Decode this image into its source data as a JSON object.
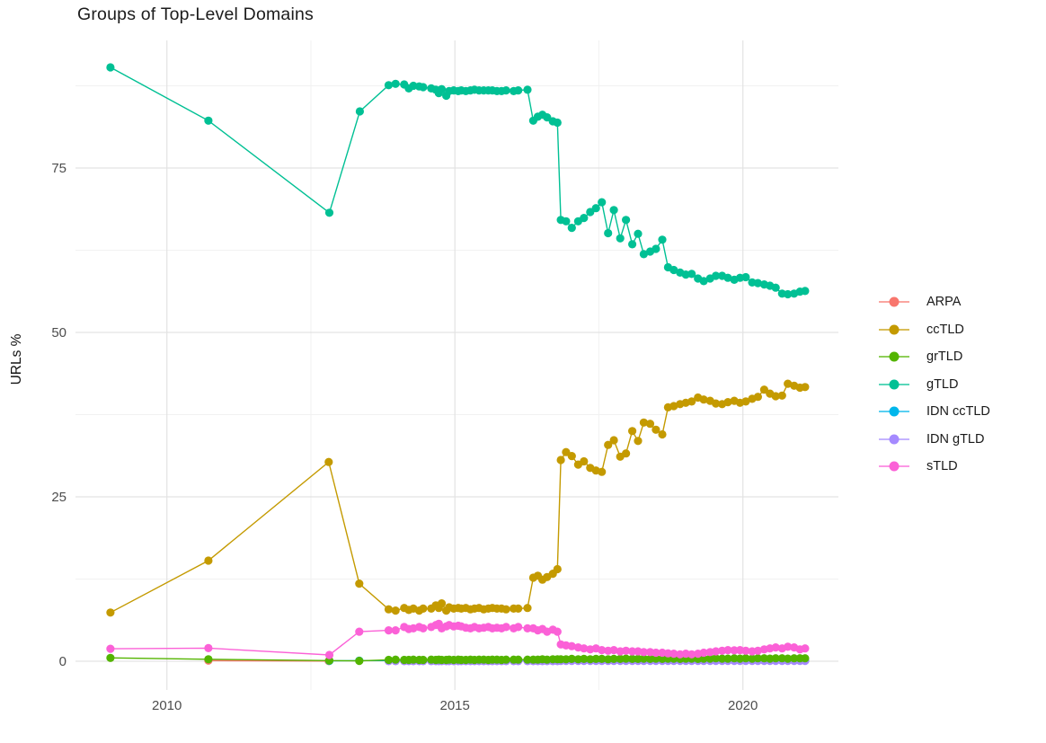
{
  "title": "Groups of Top-Level Domains",
  "axes": {
    "x_tick_labels": [
      "2010",
      "2015",
      "2020"
    ],
    "x_tick_years": [
      2010,
      2015,
      2020
    ],
    "x_minor_years": [
      2012.5,
      2017.5
    ],
    "y_tick_labels": [
      "0",
      "25",
      "50",
      "75"
    ],
    "y_tick_values": [
      0,
      25,
      50,
      75
    ],
    "y_minor_values": [
      12.5,
      37.5,
      62.5,
      87.5
    ],
    "tick_label_color": "#4d4d4d",
    "grid_major_color": "#e3e3e3",
    "grid_minor_color": "#f1f1f1"
  },
  "chart_data": {
    "type": "line",
    "title": "Groups of Top-Level Domains",
    "xlabel": "",
    "ylabel": "URLs %",
    "xlim": [
      2008.4,
      2021.7
    ],
    "ylim": [
      -4.6,
      95
    ],
    "grid": true,
    "legend_position": "right",
    "x_grid": [
      2013.85,
      2013.97,
      2014.12,
      2014.2,
      2014.28,
      2014.38,
      2014.45,
      2014.59,
      2014.67,
      2014.72,
      2014.77,
      2014.85,
      2014.9,
      2014.98,
      2015.06,
      2015.11,
      2015.19,
      2015.27,
      2015.34,
      2015.42,
      2015.5,
      2015.58,
      2015.65,
      2015.73,
      2015.81,
      2015.89,
      2016.02,
      2016.1,
      2016.26,
      2016.36,
      2016.44,
      2016.52,
      2016.6,
      2016.7,
      2016.78,
      2016.84,
      2016.93,
      2017.03,
      2017.14,
      2017.24,
      2017.35,
      2017.45,
      2017.55,
      2017.66,
      2017.76,
      2017.87,
      2017.97,
      2018.08,
      2018.18,
      2018.28,
      2018.39,
      2018.49,
      2018.6,
      2018.7,
      2018.8,
      2018.91,
      2019.01,
      2019.11,
      2019.22,
      2019.32,
      2019.43,
      2019.53,
      2019.64,
      2019.74,
      2019.85,
      2019.95,
      2020.05,
      2020.16,
      2020.26,
      2020.37,
      2020.47,
      2020.57,
      2020.68,
      2020.78,
      2020.89,
      2020.99,
      2021.08
    ],
    "series": [
      {
        "name": "ARPA",
        "color": "#F8766D",
        "points": [
          [
            2010.72,
            0.1
          ],
          [
            2012.81,
            0.03
          ]
        ]
      },
      {
        "name": "ccTLD",
        "color": "#C49A00",
        "points": [
          [
            2009.02,
            7.4
          ],
          [
            2010.72,
            15.3
          ],
          [
            2012.81,
            30.3
          ],
          [
            2013.34,
            11.8
          ]
        ],
        "grid_values": [
          7.9,
          7.7,
          8.1,
          7.8,
          8,
          7.7,
          8,
          8,
          8.5,
          8.1,
          8.8,
          7.7,
          8.2,
          8,
          8.1,
          8,
          8.1,
          7.9,
          8,
          8.1,
          7.9,
          8,
          8.1,
          8,
          8,
          7.9,
          8,
          8,
          8.1,
          12.7,
          13,
          12.4,
          12.8,
          13.3,
          14,
          30.6,
          31.8,
          31.2,
          29.9,
          30.4,
          29.4,
          29,
          28.8,
          32.9,
          33.6,
          31.1,
          31.6,
          35,
          33.5,
          36.3,
          36.1,
          35.2,
          34.5,
          38.6,
          38.8,
          39.1,
          39.3,
          39.5,
          40.1,
          39.8,
          39.6,
          39.2,
          39.1,
          39.4,
          39.6,
          39.3,
          39.5,
          39.9,
          40.2,
          41.3,
          40.7,
          40.3,
          40.4,
          42.2,
          41.9,
          41.6,
          41.7
        ]
      },
      {
        "name": "grTLD",
        "color": "#53B400",
        "points": [
          [
            2009.02,
            0.5
          ],
          [
            2010.72,
            0.3
          ],
          [
            2012.82,
            0.1
          ],
          [
            2013.34,
            0.05
          ]
        ],
        "grid_values": [
          0.2,
          0.25,
          0.2,
          0.2,
          0.25,
          0.2,
          0.2,
          0.25,
          0.2,
          0.25,
          0.2,
          0.2,
          0.25,
          0.2,
          0.25,
          0.2,
          0.2,
          0.25,
          0.2,
          0.25,
          0.25,
          0.2,
          0.25,
          0.25,
          0.2,
          0.25,
          0.25,
          0.25,
          0.25,
          0.25,
          0.25,
          0.3,
          0.25,
          0.3,
          0.3,
          0.3,
          0.3,
          0.35,
          0.3,
          0.35,
          0.3,
          0.35,
          0.35,
          0.3,
          0.35,
          0.35,
          0.4,
          0.35,
          0.35,
          0.4,
          0.35,
          0.4,
          0.35,
          0.4,
          0.4,
          0.35,
          0.4,
          0.4,
          0.35,
          0.4,
          0.4,
          0.45,
          0.4,
          0.4,
          0.45,
          0.4,
          0.45,
          0.4,
          0.45,
          0.45,
          0.4,
          0.45,
          0.45,
          0.4,
          0.45,
          0.45,
          0.45
        ]
      },
      {
        "name": "gTLD",
        "color": "#00C094",
        "points": [
          [
            2009.02,
            90.3
          ],
          [
            2010.72,
            82.2
          ],
          [
            2012.82,
            68.2
          ],
          [
            2013.35,
            83.6
          ]
        ],
        "grid_values": [
          87.6,
          87.8,
          87.7,
          87.1,
          87.5,
          87.4,
          87.3,
          87.1,
          86.9,
          86.4,
          87,
          86,
          86.7,
          86.8,
          86.7,
          86.8,
          86.7,
          86.8,
          86.9,
          86.8,
          86.8,
          86.8,
          86.8,
          86.7,
          86.7,
          86.8,
          86.7,
          86.8,
          86.9,
          82.2,
          82.8,
          83.1,
          82.7,
          82.1,
          81.9,
          67.1,
          66.9,
          65.9,
          66.9,
          67.4,
          68.3,
          68.9,
          69.8,
          65.1,
          68.6,
          64.3,
          67.1,
          63.4,
          65,
          61.9,
          62.3,
          62.7,
          64.1,
          59.9,
          59.5,
          59.1,
          58.8,
          58.9,
          58.2,
          57.8,
          58.2,
          58.6,
          58.6,
          58.3,
          58,
          58.3,
          58.4,
          57.6,
          57.5,
          57.3,
          57.1,
          56.8,
          55.9,
          55.8,
          55.9,
          56.2,
          56.3
        ]
      },
      {
        "name": "IDN ccTLD",
        "color": "#00B6EB",
        "points": [
          [
            2012.82,
            0.05
          ],
          [
            2013.34,
            0.1
          ]
        ],
        "grid_values": [
          0.1,
          0.1,
          0.1,
          0.1,
          0.1,
          0.1,
          0.1,
          0.1,
          0.1,
          0.1,
          0.1,
          0.1,
          0.1,
          0.1,
          0.1,
          0.1,
          0.1,
          0.1,
          0.1,
          0.1,
          0.1,
          0.1,
          0.1,
          0.1,
          0.1,
          0.1,
          0.1,
          0.1,
          0.1,
          0.1,
          0.1,
          0.1,
          0.1,
          0.1,
          0.1,
          0.12,
          0.12,
          0.12,
          0.12,
          0.12,
          0.12,
          0.12,
          0.12,
          0.12,
          0.12,
          0.12,
          0.12,
          0.12,
          0.12,
          0.12,
          0.12,
          0.12,
          0.12,
          0.12,
          0.12,
          0.12,
          0.12,
          0.12,
          0.12,
          0.12,
          0.12,
          0.12,
          0.12,
          0.12,
          0.12,
          0.12,
          0.12,
          0.12,
          0.12,
          0.12,
          0.12,
          0.12,
          0.12,
          0.12,
          0.12,
          0.12,
          0.12
        ]
      },
      {
        "name": "IDN gTLD",
        "color": "#A58AFF",
        "points": [],
        "grid_values": [
          0.02,
          0.02,
          0.02,
          0.02,
          0.02,
          0.02,
          0.02,
          0.02,
          0.02,
          0.02,
          0.02,
          0.02,
          0.02,
          0.02,
          0.02,
          0.02,
          0.02,
          0.02,
          0.02,
          0.02,
          0.02,
          0.02,
          0.02,
          0.02,
          0.02,
          0.02,
          0.02,
          0.02,
          0.02,
          0.02,
          0.02,
          0.02,
          0.02,
          0.02,
          0.02,
          0.05,
          0.05,
          0.05,
          0.05,
          0.05,
          0.05,
          0.05,
          0.05,
          0.05,
          0.05,
          0.05,
          0.05,
          0.05,
          0.05,
          0.05,
          0.05,
          0.05,
          0.05,
          0.05,
          0.05,
          0.05,
          0.05,
          0.05,
          0.05,
          0.05,
          0.05,
          0.05,
          0.05,
          0.05,
          0.05,
          0.05,
          0.05,
          0.05,
          0.05,
          0.05,
          0.05,
          0.05,
          0.05,
          0.05,
          0.05,
          0.05,
          0.05
        ]
      },
      {
        "name": "sTLD",
        "color": "#FB61D7",
        "points": [
          [
            2009.02,
            1.9
          ],
          [
            2010.72,
            2
          ],
          [
            2012.82,
            0.95
          ],
          [
            2013.34,
            4.5
          ]
        ],
        "grid_values": [
          4.7,
          4.7,
          5.2,
          4.9,
          5,
          5.2,
          5,
          5.2,
          5.5,
          5.7,
          5,
          5.3,
          5.5,
          5.3,
          5.4,
          5.3,
          5.1,
          5,
          5.2,
          5,
          5.1,
          5.2,
          5,
          5.1,
          5,
          5.2,
          5,
          5.2,
          5,
          5,
          4.7,
          4.9,
          4.5,
          4.8,
          4.5,
          2.55,
          2.4,
          2.3,
          2.1,
          1.95,
          1.8,
          1.95,
          1.7,
          1.6,
          1.7,
          1.5,
          1.6,
          1.5,
          1.5,
          1.4,
          1.4,
          1.3,
          1.3,
          1.2,
          1.15,
          1.05,
          1.15,
          1.05,
          1.15,
          1.3,
          1.4,
          1.5,
          1.6,
          1.7,
          1.65,
          1.7,
          1.6,
          1.5,
          1.6,
          1.8,
          1.95,
          2.1,
          1.95,
          2.2,
          2.1,
          1.8,
          1.95
        ]
      }
    ]
  }
}
